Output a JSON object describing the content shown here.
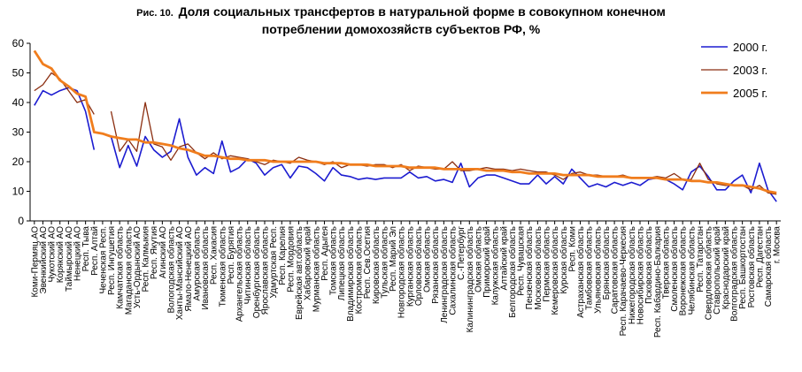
{
  "title": {
    "prefix": "Рис. 10.",
    "line1": "Доля социальных трансфертов в натуральной форме в совокупном конечном",
    "line2": "потреблении домохозяйств субъектов РФ, %"
  },
  "chart_data": {
    "type": "line",
    "ylim": [
      0,
      60
    ],
    "yticks": [
      0,
      10,
      20,
      30,
      40,
      50,
      60
    ],
    "grid": false,
    "legend_position": "top-right",
    "categories": [
      "Коми-Пермяц.АО",
      "Эвенкийский АО",
      "Чукотский АО",
      "Корякский АО",
      "Таймырский АО",
      "Ненецкий АО",
      "Респ. Тыва",
      "Респ. Алтай",
      "Чеченская Респ.",
      "Респ. Ингушетия",
      "Камчатская область",
      "Магаданская область",
      "Усть-Ордынский АО",
      "Респ. Калмыкия",
      "Респ. Якутия",
      "Агинский АО",
      "Вологодская область",
      "Ханты-Мансийский АО",
      "Ямало-Ненецкий АО",
      "Амурская область",
      "Ивановская область",
      "Респ. Хакасия",
      "Тюменская область",
      "Респ. Бурятия",
      "Архангельская область",
      "Читинская область",
      "Оренбургская область",
      "Ярославская область",
      "Удмуртская Респ.",
      "Респ. Карелия",
      "Респ. Мордовия",
      "Еврейская авт.область",
      "Хабаровский край",
      "Мурманская область",
      "Респ. Адыгея",
      "Томская область",
      "Липецкая область",
      "Владимирская область",
      "Костромская область",
      "Респ. Сев.Осетия",
      "Кировская область",
      "Тульская область",
      "Респ. Марий Эл",
      "Новгородская область",
      "Курганская область",
      "Орловская область",
      "Омская область",
      "Рязанская область",
      "Ленинградская область",
      "Сахалинская область",
      "С.-Петербург",
      "Калининградская область",
      "Омская область",
      "Приморский край",
      "Калужская область",
      "Алтайский край",
      "Белгородская область",
      "Респ. Чувашская",
      "Пензенская область",
      "Московская область",
      "Пермская область",
      "Кемеровская область",
      "Курская область",
      "Респ. Коми",
      "Астраханская область",
      "Тамбовская область",
      "Ульяновская область",
      "Брянская область",
      "Саратовская область",
      "Респ. Карачаево-Черкесия",
      "Нижегородская область",
      "Новосибирская область",
      "Псковская область",
      "Респ. Кабардино-Балкария",
      "Тверская область",
      "Смоленская область",
      "Воронежская область",
      "Челябинская область",
      "Респ. Татарстан",
      "Свердловская область",
      "Ставропольский край",
      "Краснодарский край",
      "Волгоградская область",
      "Респ. Башкортостан",
      "Ростовская область",
      "Респ. Дагестан",
      "Самарская область",
      "г. Москва"
    ],
    "series": [
      {
        "name": "2000 г.",
        "color": "#1c1cd0",
        "values": [
          39,
          44,
          42.5,
          44,
          45,
          44,
          37,
          24,
          null,
          28.5,
          18,
          25.5,
          18.5,
          28.5,
          24,
          21.5,
          23.5,
          34.5,
          21.5,
          15.5,
          18,
          16,
          27,
          16.5,
          18,
          21,
          19.5,
          15.5,
          18,
          19,
          14.5,
          18.5,
          18,
          16,
          13.5,
          18,
          15.5,
          15,
          14,
          14.5,
          14,
          14.5,
          14.5,
          14.5,
          16.5,
          14.5,
          15,
          13.5,
          14,
          13,
          19.5,
          11.5,
          14.5,
          15.5,
          15.5,
          14.5,
          13.5,
          12.5,
          12.5,
          15.5,
          12.5,
          15,
          12.5,
          17.5,
          14.5,
          11.5,
          12.5,
          11.5,
          13,
          12,
          13,
          12,
          14,
          14.5,
          14,
          12.5,
          10.5,
          16.5,
          18.5,
          15,
          10.5,
          10.5,
          13.5,
          15.5,
          9.5,
          19.5,
          10.5,
          6.5
        ]
      },
      {
        "name": "2003 г.",
        "color": "#8b2e10",
        "values": [
          44,
          46,
          50,
          48,
          44,
          40,
          41,
          36,
          null,
          37,
          23.5,
          27.5,
          23.5,
          40,
          26,
          25,
          20.5,
          25,
          26,
          23,
          21,
          23,
          21,
          22,
          21.5,
          21,
          20,
          19,
          20.5,
          20,
          19.5,
          21.5,
          20.5,
          20,
          19,
          20,
          18,
          19,
          19,
          18.5,
          19,
          19,
          18,
          19,
          17,
          18.5,
          18,
          17.5,
          17.5,
          20,
          17,
          17,
          17.5,
          18,
          17.5,
          17.5,
          17,
          17.5,
          17,
          16.5,
          16.5,
          15.5,
          14,
          16,
          16.5,
          15.5,
          15.5,
          15,
          15,
          15.5,
          14.5,
          14.5,
          14.5,
          15,
          14.5,
          16,
          14,
          14,
          19.5,
          14,
          12.5,
          12,
          12,
          12,
          10.5,
          12,
          9.5,
          9
        ]
      },
      {
        "name": "2005 г.",
        "color": "#f07d1d",
        "values": [
          57.5,
          53,
          51.5,
          47.5,
          45.5,
          43,
          42,
          30,
          29.5,
          28.5,
          28,
          27.5,
          27.5,
          26.5,
          26.5,
          26,
          25.5,
          24.5,
          24,
          23,
          22,
          22,
          21.5,
          21,
          21,
          20.5,
          20.5,
          20.5,
          20,
          20,
          20,
          20,
          20,
          20,
          19.5,
          19.5,
          19.5,
          19,
          19,
          19,
          18.5,
          18.5,
          18.5,
          18.5,
          18,
          18,
          18,
          18,
          17.5,
          17.5,
          17.5,
          17.5,
          17.5,
          17,
          17,
          17,
          16.5,
          16.5,
          16,
          16,
          16,
          16,
          15.5,
          15.5,
          15.5,
          15.5,
          15,
          15,
          15,
          15,
          14.5,
          14.5,
          14.5,
          14.5,
          14,
          14,
          14,
          13.5,
          13.5,
          13,
          13,
          12.5,
          12,
          12,
          11.5,
          11,
          10,
          9.5
        ]
      }
    ]
  }
}
